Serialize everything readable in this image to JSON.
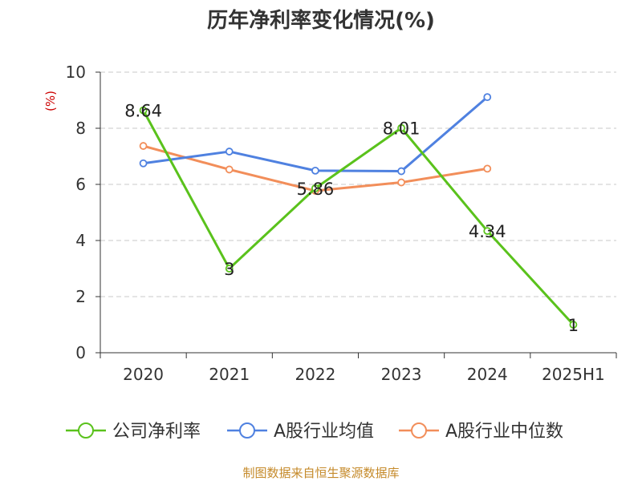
{
  "chart_data": {
    "type": "line",
    "title": "历年净利率变化情况(%)",
    "y_unit": "(%)",
    "categories": [
      "2020",
      "2021",
      "2022",
      "2023",
      "2024",
      "2025H1"
    ],
    "ylim": [
      0,
      10
    ],
    "yticks": [
      "0",
      "2",
      "4",
      "6",
      "8",
      "10"
    ],
    "grid": true,
    "legend_position": "bottom",
    "series": [
      {
        "name": "公司净利率",
        "color": "#5ac21c",
        "values": [
          8.64,
          3,
          5.86,
          8.01,
          4.34,
          1
        ],
        "labels": [
          "8.64",
          "3",
          "5.86",
          "8.01",
          "4.34",
          "1"
        ]
      },
      {
        "name": "A股行业均值",
        "color": "#4f81e0",
        "values": [
          6.75,
          7.17,
          6.49,
          6.47,
          9.11,
          null
        ],
        "labels": []
      },
      {
        "name": "A股行业中位数",
        "color": "#f28e5a",
        "values": [
          7.37,
          6.53,
          5.77,
          6.07,
          6.56,
          null
        ],
        "labels": []
      }
    ]
  },
  "footer": {
    "source": "制图数据来自恒生聚源数据库"
  }
}
